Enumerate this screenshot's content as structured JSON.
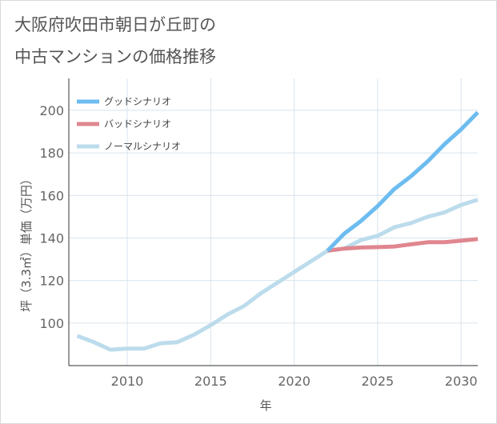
{
  "chart_data": {
    "type": "line",
    "title_lines": [
      "大阪府吹田市朝日が丘町の",
      "中古マンションの価格推移"
    ],
    "xlabel": "年",
    "ylabel": "坪（3.3㎡）単価（万円）",
    "xlim": [
      2006.5,
      2031
    ],
    "ylim": [
      80,
      215
    ],
    "x_ticks": [
      2010,
      2015,
      2020,
      2025,
      2030
    ],
    "y_ticks": [
      100,
      120,
      140,
      160,
      180,
      200
    ],
    "grid": true,
    "legend_position": "top-left",
    "series": [
      {
        "name": "グッドシナリオ",
        "color": "#6cbcf0",
        "x": [
          2022,
          2023,
          2024,
          2025,
          2026,
          2027,
          2028,
          2029,
          2030,
          2031
        ],
        "values": [
          134,
          142,
          148,
          155,
          163,
          169,
          176,
          184,
          191,
          199
        ]
      },
      {
        "name": "バッドシナリオ",
        "color": "#e0868f",
        "x": [
          2022,
          2023,
          2024,
          2025,
          2026,
          2027,
          2028,
          2029,
          2030,
          2031
        ],
        "values": [
          134,
          135,
          135.5,
          135.7,
          136,
          137,
          138,
          138,
          138.7,
          139.5
        ]
      },
      {
        "name": "ノーマルシナリオ",
        "color": "#bcdcec",
        "x": [
          2007,
          2008,
          2009,
          2010,
          2011,
          2012,
          2013,
          2014,
          2015,
          2016,
          2017,
          2018,
          2019,
          2020,
          2021,
          2022,
          2023,
          2024,
          2025,
          2026,
          2027,
          2028,
          2029,
          2030,
          2031
        ],
        "values": [
          94,
          91,
          87.5,
          88,
          88,
          90.5,
          91,
          94.5,
          99,
          104,
          108,
          114,
          119,
          124,
          129,
          134,
          135,
          139,
          141,
          145,
          147,
          150,
          152,
          155.5,
          158
        ]
      }
    ]
  }
}
